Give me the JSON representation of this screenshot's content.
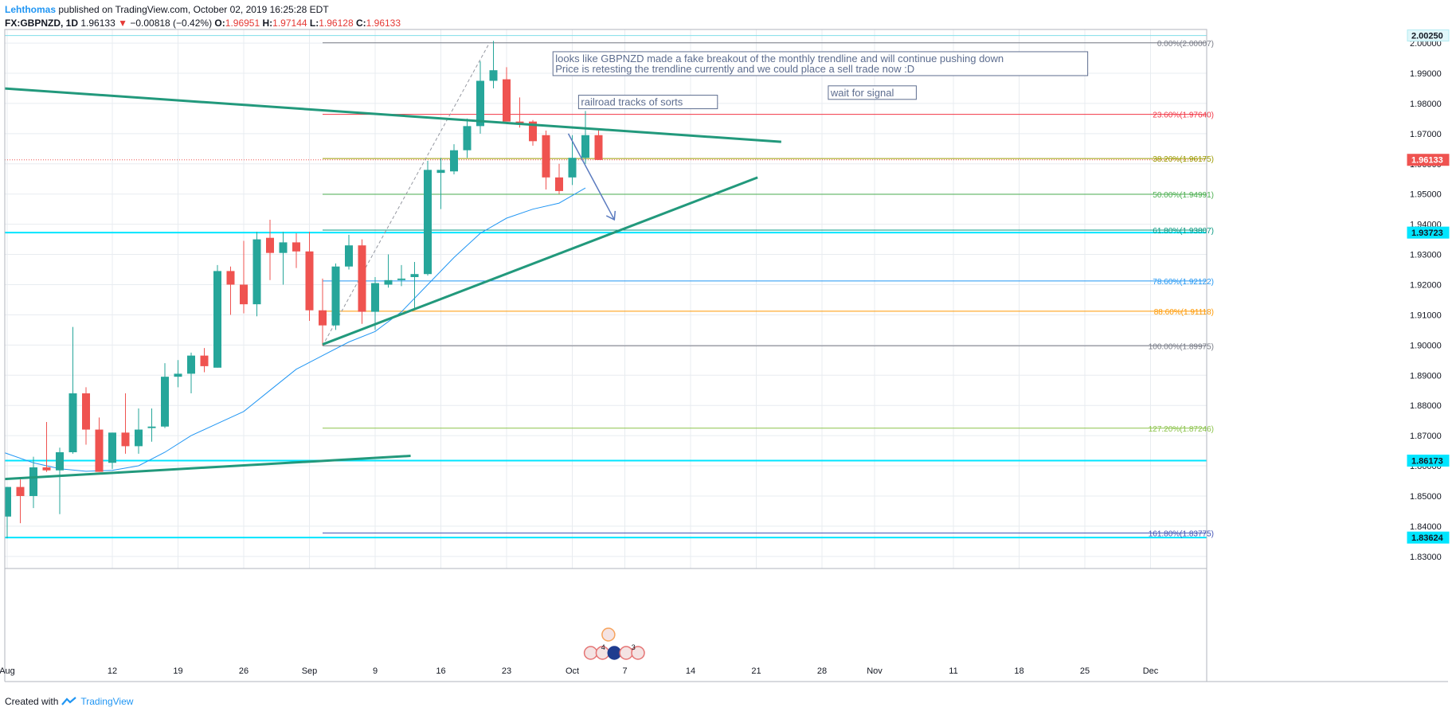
{
  "header": {
    "author": "Lehthomas",
    "text": " published on TradingView.com, October 02, 2019 16:25:28 EDT"
  },
  "legend": {
    "symbol": "FX:GBPNZD, 1D",
    "last": "1.96133",
    "arrow": "▼",
    "change": "−0.00818 (−0.42%)",
    "o_label": "O:",
    "o_value": "1.96951",
    "h_label": "H:",
    "h_value": "1.97144",
    "l_label": "L:",
    "l_value": "1.96128",
    "c_label": "C:",
    "c_value": "1.96133"
  },
  "footer": {
    "created": "Created with",
    "brand": "TradingView"
  },
  "colors": {
    "up": "#26a69a",
    "down": "#ef5350",
    "grid": "#e8ecf0",
    "trend": "#22997c",
    "ma": "#2196f3",
    "cyan": "#00e5ff"
  },
  "chart_data": {
    "type": "candlestick",
    "symbol": "FX:GBPNZD",
    "interval": "1D",
    "ylim": [
      1.826,
      2.0045
    ],
    "yticks": [
      "2.00000",
      "1.99000",
      "1.98000",
      "1.97000",
      "1.96000",
      "1.95000",
      "1.94000",
      "1.93000",
      "1.92000",
      "1.91000",
      "1.90000",
      "1.89000",
      "1.88000",
      "1.87000",
      "1.86000",
      "1.85000",
      "1.84000",
      "1.83000"
    ],
    "x_ticks": [
      {
        "i": 0,
        "label": "Aug"
      },
      {
        "i": 8,
        "label": "12"
      },
      {
        "i": 13,
        "label": "19"
      },
      {
        "i": 18,
        "label": "26"
      },
      {
        "i": 23,
        "label": "Sep"
      },
      {
        "i": 28,
        "label": "9"
      },
      {
        "i": 33,
        "label": "16"
      },
      {
        "i": 38,
        "label": "23"
      },
      {
        "i": 43,
        "label": "Oct"
      },
      {
        "i": 47,
        "label": "7"
      },
      {
        "i": 52,
        "label": "14"
      },
      {
        "i": 57,
        "label": "21"
      },
      {
        "i": 62,
        "label": "28"
      },
      {
        "i": 66,
        "label": "Nov"
      },
      {
        "i": 72,
        "label": "11"
      },
      {
        "i": 77,
        "label": "18"
      },
      {
        "i": 82,
        "label": "25"
      },
      {
        "i": 87,
        "label": "Dec"
      }
    ],
    "candles": [
      {
        "o": 1.8432,
        "h": 1.853,
        "l": 1.836,
        "c": 1.853
      },
      {
        "o": 1.853,
        "h": 1.8555,
        "l": 1.841,
        "c": 1.85
      },
      {
        "o": 1.85,
        "h": 1.863,
        "l": 1.846,
        "c": 1.8595
      },
      {
        "o": 1.8595,
        "h": 1.8745,
        "l": 1.858,
        "c": 1.8585
      },
      {
        "o": 1.8585,
        "h": 1.866,
        "l": 1.844,
        "c": 1.8645
      },
      {
        "o": 1.8645,
        "h": 1.906,
        "l": 1.864,
        "c": 1.884
      },
      {
        "o": 1.884,
        "h": 1.886,
        "l": 1.867,
        "c": 1.872
      },
      {
        "o": 1.872,
        "h": 1.876,
        "l": 1.858,
        "c": 1.858
      },
      {
        "o": 1.861,
        "h": 1.871,
        "l": 1.859,
        "c": 1.871
      },
      {
        "o": 1.871,
        "h": 1.884,
        "l": 1.864,
        "c": 1.8665
      },
      {
        "o": 1.8665,
        "h": 1.879,
        "l": 1.864,
        "c": 1.872
      },
      {
        "o": 1.8725,
        "h": 1.879,
        "l": 1.868,
        "c": 1.873
      },
      {
        "o": 1.873,
        "h": 1.894,
        "l": 1.8725,
        "c": 1.8895
      },
      {
        "o": 1.8895,
        "h": 1.895,
        "l": 1.886,
        "c": 1.8905
      },
      {
        "o": 1.8905,
        "h": 1.8975,
        "l": 1.884,
        "c": 1.8965
      },
      {
        "o": 1.8965,
        "h": 1.899,
        "l": 1.891,
        "c": 1.893
      },
      {
        "o": 1.8925,
        "h": 1.9265,
        "l": 1.8925,
        "c": 1.9245
      },
      {
        "o": 1.9245,
        "h": 1.926,
        "l": 1.91,
        "c": 1.92
      },
      {
        "o": 1.92,
        "h": 1.9345,
        "l": 1.9105,
        "c": 1.9135
      },
      {
        "o": 1.9135,
        "h": 1.9375,
        "l": 1.9095,
        "c": 1.935
      },
      {
        "o": 1.9355,
        "h": 1.9415,
        "l": 1.9215,
        "c": 1.9305
      },
      {
        "o": 1.9305,
        "h": 1.9375,
        "l": 1.92,
        "c": 1.934
      },
      {
        "o": 1.934,
        "h": 1.937,
        "l": 1.9255,
        "c": 1.931
      },
      {
        "o": 1.931,
        "h": 1.9375,
        "l": 1.908,
        "c": 1.9115
      },
      {
        "o": 1.9115,
        "h": 1.922,
        "l": 1.8998,
        "c": 1.9065
      },
      {
        "o": 1.9065,
        "h": 1.927,
        "l": 1.905,
        "c": 1.926
      },
      {
        "o": 1.926,
        "h": 1.9365,
        "l": 1.925,
        "c": 1.933
      },
      {
        "o": 1.933,
        "h": 1.935,
        "l": 1.907,
        "c": 1.911
      },
      {
        "o": 1.911,
        "h": 1.9225,
        "l": 1.905,
        "c": 1.9205
      },
      {
        "o": 1.92,
        "h": 1.93,
        "l": 1.919,
        "c": 1.9215
      },
      {
        "o": 1.9215,
        "h": 1.9265,
        "l": 1.9195,
        "c": 1.922
      },
      {
        "o": 1.9225,
        "h": 1.9275,
        "l": 1.912,
        "c": 1.9235
      },
      {
        "o": 1.9235,
        "h": 1.961,
        "l": 1.923,
        "c": 1.958
      },
      {
        "o": 1.957,
        "h": 1.962,
        "l": 1.945,
        "c": 1.958
      },
      {
        "o": 1.9575,
        "h": 1.9665,
        "l": 1.9565,
        "c": 1.9645
      },
      {
        "o": 1.9645,
        "h": 1.975,
        "l": 1.962,
        "c": 1.9725
      },
      {
        "o": 1.9725,
        "h": 1.994,
        "l": 1.97,
        "c": 1.9875
      },
      {
        "o": 1.9875,
        "h": 2.0007,
        "l": 1.985,
        "c": 1.991
      },
      {
        "o": 1.988,
        "h": 1.992,
        "l": 1.974,
        "c": 1.974
      },
      {
        "o": 1.974,
        "h": 1.982,
        "l": 1.972,
        "c": 1.9735
      },
      {
        "o": 1.974,
        "h": 1.9745,
        "l": 1.966,
        "c": 1.9675
      },
      {
        "o": 1.9695,
        "h": 1.971,
        "l": 1.9515,
        "c": 1.9555
      },
      {
        "o": 1.9555,
        "h": 1.96,
        "l": 1.95,
        "c": 1.951
      },
      {
        "o": 1.9555,
        "h": 1.9695,
        "l": 1.953,
        "c": 1.962
      },
      {
        "o": 1.962,
        "h": 1.9775,
        "l": 1.96,
        "c": 1.9695
      },
      {
        "o": 1.9695,
        "h": 1.9714,
        "l": 1.9613,
        "c": 1.9613
      }
    ],
    "ma": {
      "x": [
        -0.3,
        2,
        4,
        6,
        8,
        10,
        12,
        14,
        16,
        18,
        20,
        22,
        24,
        26,
        28,
        30,
        32,
        34,
        36,
        38,
        40,
        42,
        44
      ],
      "y": [
        1.8645,
        1.861,
        1.859,
        1.8582,
        1.8585,
        1.86,
        1.8645,
        1.87,
        1.874,
        1.878,
        1.885,
        1.892,
        1.8965,
        1.901,
        1.9045,
        1.911,
        1.92,
        1.929,
        1.937,
        1.942,
        1.945,
        1.947,
        1.952
      ]
    },
    "fib": {
      "start": 24,
      "end": 92,
      "levels": [
        {
          "ratio": "0.00%",
          "price": "2.00007",
          "value": 2.00007,
          "color": "#787b86"
        },
        {
          "ratio": "23.60%",
          "price": "1.97640",
          "value": 1.9764,
          "color": "#f23645"
        },
        {
          "ratio": "38.20%",
          "price": "1.96175",
          "value": 1.96175,
          "color": "#9c9b00"
        },
        {
          "ratio": "50.00%",
          "price": "1.94991",
          "value": 1.94991,
          "color": "#4caf50"
        },
        {
          "ratio": "61.80%",
          "price": "1.93807",
          "value": 1.93807,
          "color": "#089981"
        },
        {
          "ratio": "78.60%",
          "price": "1.92122",
          "value": 1.92122,
          "color": "#2196f3"
        },
        {
          "ratio": "88.60%",
          "price": "1.91118",
          "value": 1.91118,
          "color": "#ff9800"
        },
        {
          "ratio": "100.00%",
          "price": "1.89975",
          "value": 1.89975,
          "color": "#787b86"
        },
        {
          "ratio": "127.20%",
          "price": "1.87246",
          "value": 1.87246,
          "color": "#8bc34a"
        },
        {
          "ratio": "161.80%",
          "price": "1.83775",
          "value": 1.83775,
          "color": "#3f51b5"
        }
      ]
    },
    "horizontal_lines": [
      {
        "value": 2.0025,
        "label": "2.00250",
        "color": "#80deea"
      },
      {
        "value": 1.93723,
        "label": "1.93723",
        "color": "#00e5ff"
      },
      {
        "value": 1.86173,
        "label": "1.86173",
        "color": "#00e5ff"
      },
      {
        "value": 1.83624,
        "label": "1.83624",
        "color": "#00e5ff"
      }
    ],
    "last_price": {
      "value": 1.96133,
      "label": "1.96133",
      "color": "#ef5350"
    },
    "trendlines": [
      {
        "x1": -0.3,
        "y1": 1.985,
        "x2": 58.9,
        "y2": 1.9673
      },
      {
        "x1": 24,
        "y1": 1.9002,
        "x2": 57.1,
        "y2": 1.9555
      },
      {
        "x1": -0.3,
        "y1": 1.8556,
        "x2": 30.7,
        "y2": 1.8633
      }
    ],
    "annotations": [
      {
        "id": "note-main",
        "lines": [
          "looks like GBPNZD made a fake breakout of the monthly trendline and will continue pushing down",
          "Price is retesting the trendline currently and we could place a sell trade now :D"
        ],
        "x": 41.65,
        "y": 1.9966
      },
      {
        "id": "note-railroad",
        "lines": [
          "railroad tracks of sorts"
        ],
        "x": 43.6,
        "y": 1.9822
      },
      {
        "id": "note-wait",
        "lines": [
          "wait for signal"
        ],
        "x": 62.6,
        "y": 1.9853
      }
    ],
    "events": {
      "row_top_x": [
        45.75
      ],
      "row_bottom_x": [
        44.4,
        45.3,
        46.2,
        47.1,
        48.0
      ],
      "labels": [
        {
          "x": 45.2,
          "text": "4"
        },
        {
          "x": 47.5,
          "text": "3"
        }
      ]
    }
  }
}
